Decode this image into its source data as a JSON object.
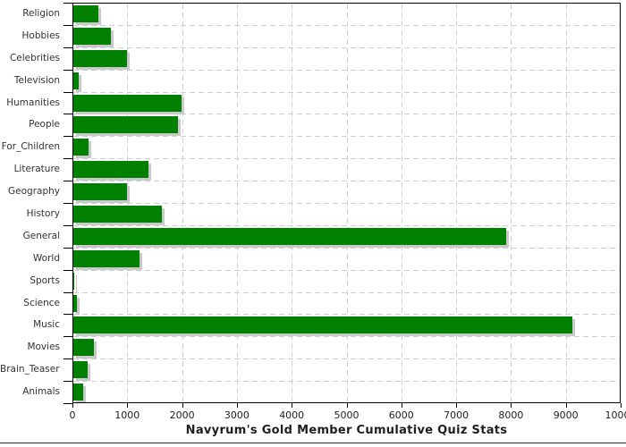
{
  "chart_data": {
    "type": "bar",
    "orientation": "horizontal",
    "title": "Navyrum's Gold Member Cumulative Quiz Stats",
    "categories": [
      "Religion",
      "Hobbies",
      "Celebrities",
      "Television",
      "Humanities",
      "People",
      "For_Children",
      "Literature",
      "Geography",
      "History",
      "General",
      "World",
      "Sports",
      "Science",
      "Music",
      "Movies",
      "Brain_Teasers",
      "Animals"
    ],
    "values": [
      450,
      690,
      975,
      90,
      1970,
      1905,
      270,
      1370,
      970,
      1620,
      7900,
      1200,
      20,
      65,
      9100,
      380,
      265,
      175
    ],
    "xlabel": "",
    "ylabel": "",
    "xlim": [
      0,
      10000
    ],
    "x_ticks": [
      0,
      1000,
      2000,
      3000,
      4000,
      5000,
      6000,
      7000,
      8000,
      9000,
      10000
    ],
    "grid": "dashed",
    "legend": "none",
    "bar_color": "#008000",
    "bar_shadow_color": "#c9c9c9",
    "grid_color": "#cbd1d6",
    "axis_color": "#000000",
    "category_label_color": "#333333",
    "tick_label_color": "#222222",
    "title_color": "#1f1f1f",
    "background_color": "#ffffff"
  }
}
